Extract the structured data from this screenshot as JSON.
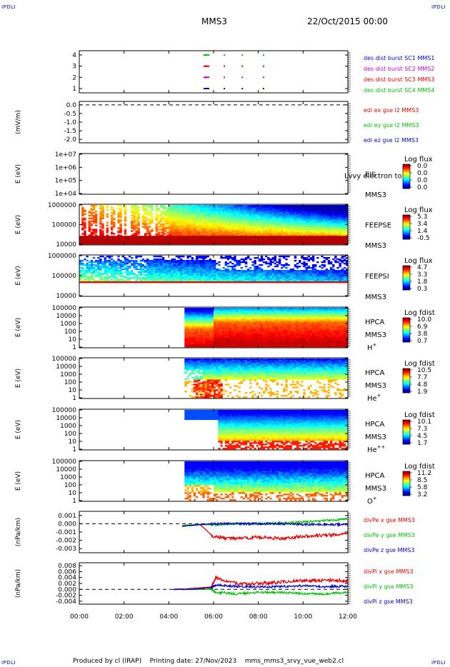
{
  "header": {
    "corner_label": "IPDLI",
    "title": "MMS3",
    "date": "22/Oct/2015 00:00"
  },
  "footer": {
    "producer": "Produced by cl (IRAP)",
    "printing_date": "Printing date: 27/Nov/2023",
    "filename": "mms_mms3_srvy_vue_web2.cl"
  },
  "chart_data": {
    "type": "multi-panel",
    "x_axis": {
      "ticks": [
        "00:00",
        "02:00",
        "04:00",
        "06:00",
        "08:00",
        "10:00",
        "12:00"
      ],
      "range_hours": [
        0,
        12
      ]
    },
    "panels": [
      {
        "id": "burst",
        "type": "scatter",
        "yticks": [
          "1",
          "2",
          "3",
          "4"
        ],
        "legend": [
          {
            "text": "des dist burst SC1 MMS1",
            "color": "#0000c8"
          },
          {
            "text": "des dist burst SC2 MMS2",
            "color": "#c800c8"
          },
          {
            "text": "des dist burst SC3 MMS3",
            "color": "#e00000"
          },
          {
            "text": "des dist burst SC4 MMS4",
            "color": "#00c000"
          }
        ],
        "series": [
          {
            "y": 4,
            "color": "#00c000",
            "times": [
              5.55,
              5.6,
              5.68,
              6.45,
              7.25,
              8.2
            ]
          },
          {
            "y": 3,
            "color": "#e00000",
            "times": [
              5.55,
              5.6,
              5.68,
              6.45,
              7.25,
              8.2
            ]
          },
          {
            "y": 2,
            "color": "#c800c8",
            "times": [
              5.55,
              5.6,
              5.68,
              6.45,
              7.25,
              8.2
            ]
          },
          {
            "y": 1,
            "color": "#0000c8",
            "times": [
              5.55,
              5.6,
              5.68,
              6.45,
              7.25,
              8.2
            ]
          }
        ]
      },
      {
        "id": "edi",
        "type": "line",
        "ylabel": "(mV/m)",
        "yticks": [
          "0.0",
          "-0.5",
          "-1.0",
          "-1.5",
          "-2.0"
        ],
        "yrange": [
          -2.2,
          0.2
        ],
        "legend": [
          {
            "text": "edi ex gse l2 MMS3",
            "color": "#e00000"
          },
          {
            "text": "edi ey gse l2 MMS3",
            "color": "#00c000"
          },
          {
            "text": "edi ez gse l2 MMS3",
            "color": "#0000c8"
          }
        ],
        "reference_line": 0
      },
      {
        "id": "eis",
        "type": "heatmap",
        "ylabel": "E (eV)",
        "yticks": [
          "1e+07",
          "1e+06",
          "1e+05",
          "1e+04"
        ],
        "instrument": "EIS",
        "spacecraft": "MMS3",
        "overlay_text": "Lvvy electron to",
        "colorbar": {
          "title": "Log flux",
          "ticks": [
            "0.0",
            "0.0",
            "0.0",
            "0.0"
          ]
        }
      },
      {
        "id": "feepse",
        "type": "heatmap",
        "ylabel": "E (eV)",
        "yticks": [
          "1000000",
          "100000",
          "10000"
        ],
        "instrument": "FEEPSE",
        "spacecraft": "MMS3",
        "colorbar": {
          "title": "Log flux",
          "ticks": [
            "5.3",
            "3.4",
            "1.4",
            "-0.5"
          ]
        }
      },
      {
        "id": "feepsi",
        "type": "heatmap",
        "ylabel": "E (eV)",
        "yticks": [
          "1000000",
          "100000",
          "10000"
        ],
        "instrument": "FEEPSI",
        "spacecraft": "MMS3",
        "colorbar": {
          "title": "Log flux",
          "ticks": [
            "4.7",
            "3.3",
            "1.8",
            "0.3"
          ]
        }
      },
      {
        "id": "hpca-h",
        "type": "heatmap",
        "ylabel": "E (eV)",
        "yticks": [
          "100000",
          "10000",
          "1000",
          "100",
          "10",
          "1"
        ],
        "instrument": "HPCA",
        "spacecraft": "MMS3",
        "species": "H+",
        "colorbar": {
          "title": "Log fdist",
          "ticks": [
            "10.0",
            "6.9",
            "3.8",
            "0.7"
          ]
        }
      },
      {
        "id": "hpca-he",
        "type": "heatmap",
        "ylabel": "E (eV)",
        "yticks": [
          "100000",
          "10000",
          "1000",
          "100",
          "10",
          "1"
        ],
        "instrument": "HPCA",
        "spacecraft": "MMS3",
        "species": "He+",
        "colorbar": {
          "title": "Log fdist",
          "ticks": [
            "10.5",
            "7.7",
            "4.8",
            "1.9"
          ]
        }
      },
      {
        "id": "hpca-hepp",
        "type": "heatmap",
        "ylabel": "E (eV)",
        "yticks": [
          "100000",
          "10000",
          "1000",
          "100",
          "10",
          "1"
        ],
        "instrument": "HPCA",
        "spacecraft": "MMS3",
        "species": "He++",
        "colorbar": {
          "title": "Log fdist",
          "ticks": [
            "10.1",
            "7.3",
            "4.5",
            "1.7"
          ]
        }
      },
      {
        "id": "hpca-o",
        "type": "heatmap",
        "ylabel": "E (eV)",
        "yticks": [
          "100000",
          "10000",
          "1000",
          "100",
          "10",
          "1"
        ],
        "instrument": "HPCA",
        "spacecraft": "MMS3",
        "species": "O+",
        "colorbar": {
          "title": "Log fdist",
          "ticks": [
            "11.2",
            "8.5",
            "5.8",
            "3.2"
          ]
        }
      },
      {
        "id": "divpe",
        "type": "line",
        "ylabel": "(nPa/km)",
        "yticks": [
          "0.001",
          "0.000",
          "-0.001",
          "-0.002",
          "-0.003"
        ],
        "yrange": [
          -0.0035,
          0.0015
        ],
        "reference_line": 0,
        "legend": [
          {
            "text": "divPe x gse MMS3",
            "color": "#e00000"
          },
          {
            "text": "divPe y gse MMS3",
            "color": "#00c000"
          },
          {
            "text": "divPe z gse MMS3",
            "color": "#0000c8"
          }
        ],
        "series": [
          {
            "name": "divPe x gse MMS3",
            "color": "#e00000",
            "points": [
              [
                4.6,
                -0.0003
              ],
              [
                5.4,
                -0.0001
              ],
              [
                6.0,
                -0.0016
              ],
              [
                7.0,
                -0.0018
              ],
              [
                8.0,
                -0.0016
              ],
              [
                9.0,
                -0.0018
              ],
              [
                10.0,
                -0.0015
              ],
              [
                11.0,
                -0.0014
              ],
              [
                12.0,
                -0.0012
              ]
            ]
          },
          {
            "name": "divPe y gse MMS3",
            "color": "#00c000",
            "points": [
              [
                4.6,
                -0.0002
              ],
              [
                5.4,
                -0.0001
              ],
              [
                6.0,
                -0.0001
              ],
              [
                7.0,
                0.0
              ],
              [
                8.0,
                0.0
              ],
              [
                9.0,
                0.0001
              ],
              [
                10.0,
                0.0002
              ],
              [
                11.0,
                0.0004
              ],
              [
                12.0,
                0.0006
              ]
            ]
          },
          {
            "name": "divPe z gse MMS3",
            "color": "#0000c8",
            "points": [
              [
                4.6,
                -0.0003
              ],
              [
                5.4,
                -0.0001
              ],
              [
                6.0,
                0.0
              ],
              [
                7.0,
                0.0
              ],
              [
                8.0,
                0.0
              ],
              [
                9.0,
                0.0
              ],
              [
                10.0,
                -0.0001
              ],
              [
                11.0,
                -0.0001
              ],
              [
                12.0,
                -0.0001
              ]
            ]
          }
        ]
      },
      {
        "id": "divpi",
        "type": "line",
        "ylabel": "(nPa/km)",
        "yticks": [
          "0.008",
          "0.006",
          "0.004",
          "0.002",
          "0.000",
          "-0.002",
          "-0.004"
        ],
        "yrange": [
          -0.005,
          0.009
        ],
        "reference_line": 0,
        "legend": [
          {
            "text": "divPi x gse MMS3",
            "color": "#e00000"
          },
          {
            "text": "divPi y gse MMS3",
            "color": "#00c000"
          },
          {
            "text": "divPi z gse MMS3",
            "color": "#0000c8"
          }
        ],
        "series": [
          {
            "name": "divPi x gse MMS3",
            "color": "#e00000",
            "points": [
              [
                4.2,
                0.0
              ],
              [
                5.0,
                0.0003
              ],
              [
                5.9,
                0.0008
              ],
              [
                6.1,
                0.004
              ],
              [
                7.0,
                0.002
              ],
              [
                8.0,
                0.002
              ],
              [
                9.0,
                0.0025
              ],
              [
                10.0,
                0.003
              ],
              [
                11.0,
                0.003
              ],
              [
                12.0,
                0.003
              ]
            ]
          },
          {
            "name": "divPi y gse MMS3",
            "color": "#00c000",
            "points": [
              [
                4.2,
                0.0
              ],
              [
                5.0,
                0.0
              ],
              [
                5.9,
                0.0
              ],
              [
                6.1,
                -0.001
              ],
              [
                7.0,
                -0.0015
              ],
              [
                8.0,
                -0.001
              ],
              [
                9.0,
                -0.001
              ],
              [
                10.0,
                -0.0015
              ],
              [
                11.0,
                -0.0015
              ],
              [
                12.0,
                -0.001
              ]
            ]
          },
          {
            "name": "divPi z gse MMS3",
            "color": "#0000c8",
            "points": [
              [
                4.2,
                0.0
              ],
              [
                5.0,
                0.0
              ],
              [
                5.9,
                0.0005
              ],
              [
                6.1,
                0.0015
              ],
              [
                7.0,
                0.001
              ],
              [
                8.0,
                0.0008
              ],
              [
                9.0,
                0.001
              ],
              [
                10.0,
                0.0012
              ],
              [
                11.0,
                0.001
              ],
              [
                12.0,
                0.001
              ]
            ]
          }
        ]
      }
    ]
  }
}
